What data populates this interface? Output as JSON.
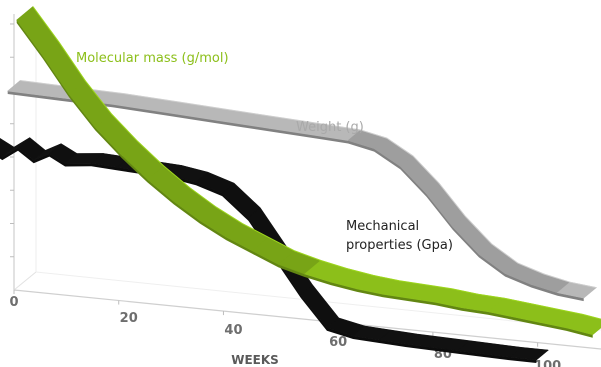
{
  "chart_data": {
    "type": "line",
    "xlabel": "WEEKS",
    "xlim": [
      0,
      110
    ],
    "x_ticks": [
      "0",
      "20",
      "40",
      "60",
      "80",
      "100"
    ],
    "ylim": [
      0,
      1
    ],
    "y_tick_count": 8,
    "series": [
      {
        "name": "Molecular mass (g/mol)",
        "color": "#8cbf1a",
        "x": [
          0,
          5,
          10,
          15,
          20,
          25,
          30,
          35,
          40,
          45,
          50,
          55,
          60,
          65,
          70,
          75,
          80,
          85,
          90,
          95,
          100,
          105,
          110
        ],
        "y": [
          0.97,
          0.85,
          0.72,
          0.61,
          0.52,
          0.44,
          0.37,
          0.31,
          0.26,
          0.22,
          0.18,
          0.155,
          0.135,
          0.12,
          0.11,
          0.105,
          0.1,
          0.09,
          0.085,
          0.075,
          0.065,
          0.055,
          0.04
        ]
      },
      {
        "name": "Weight (g)",
        "color": "#b8b8b8",
        "x": [
          0,
          10,
          20,
          30,
          40,
          50,
          60,
          65,
          70,
          75,
          80,
          85,
          90,
          95,
          100,
          105,
          110
        ],
        "y": [
          0.74,
          0.735,
          0.73,
          0.72,
          0.71,
          0.7,
          0.69,
          0.685,
          0.665,
          0.61,
          0.52,
          0.41,
          0.32,
          0.26,
          0.23,
          0.21,
          0.2
        ]
      },
      {
        "name": "Mechanical properties (Gpa)",
        "color": "#111111",
        "x": [
          0,
          3,
          6,
          9,
          12,
          15,
          20,
          25,
          30,
          35,
          40,
          45,
          50,
          55,
          60,
          65,
          70,
          75,
          80,
          90,
          100,
          105
        ],
        "y": [
          0.6,
          0.57,
          0.61,
          0.57,
          0.6,
          0.57,
          0.58,
          0.575,
          0.57,
          0.565,
          0.55,
          0.52,
          0.44,
          0.31,
          0.18,
          0.07,
          0.05,
          0.045,
          0.04,
          0.035,
          0.03,
          0.03
        ]
      }
    ]
  }
}
